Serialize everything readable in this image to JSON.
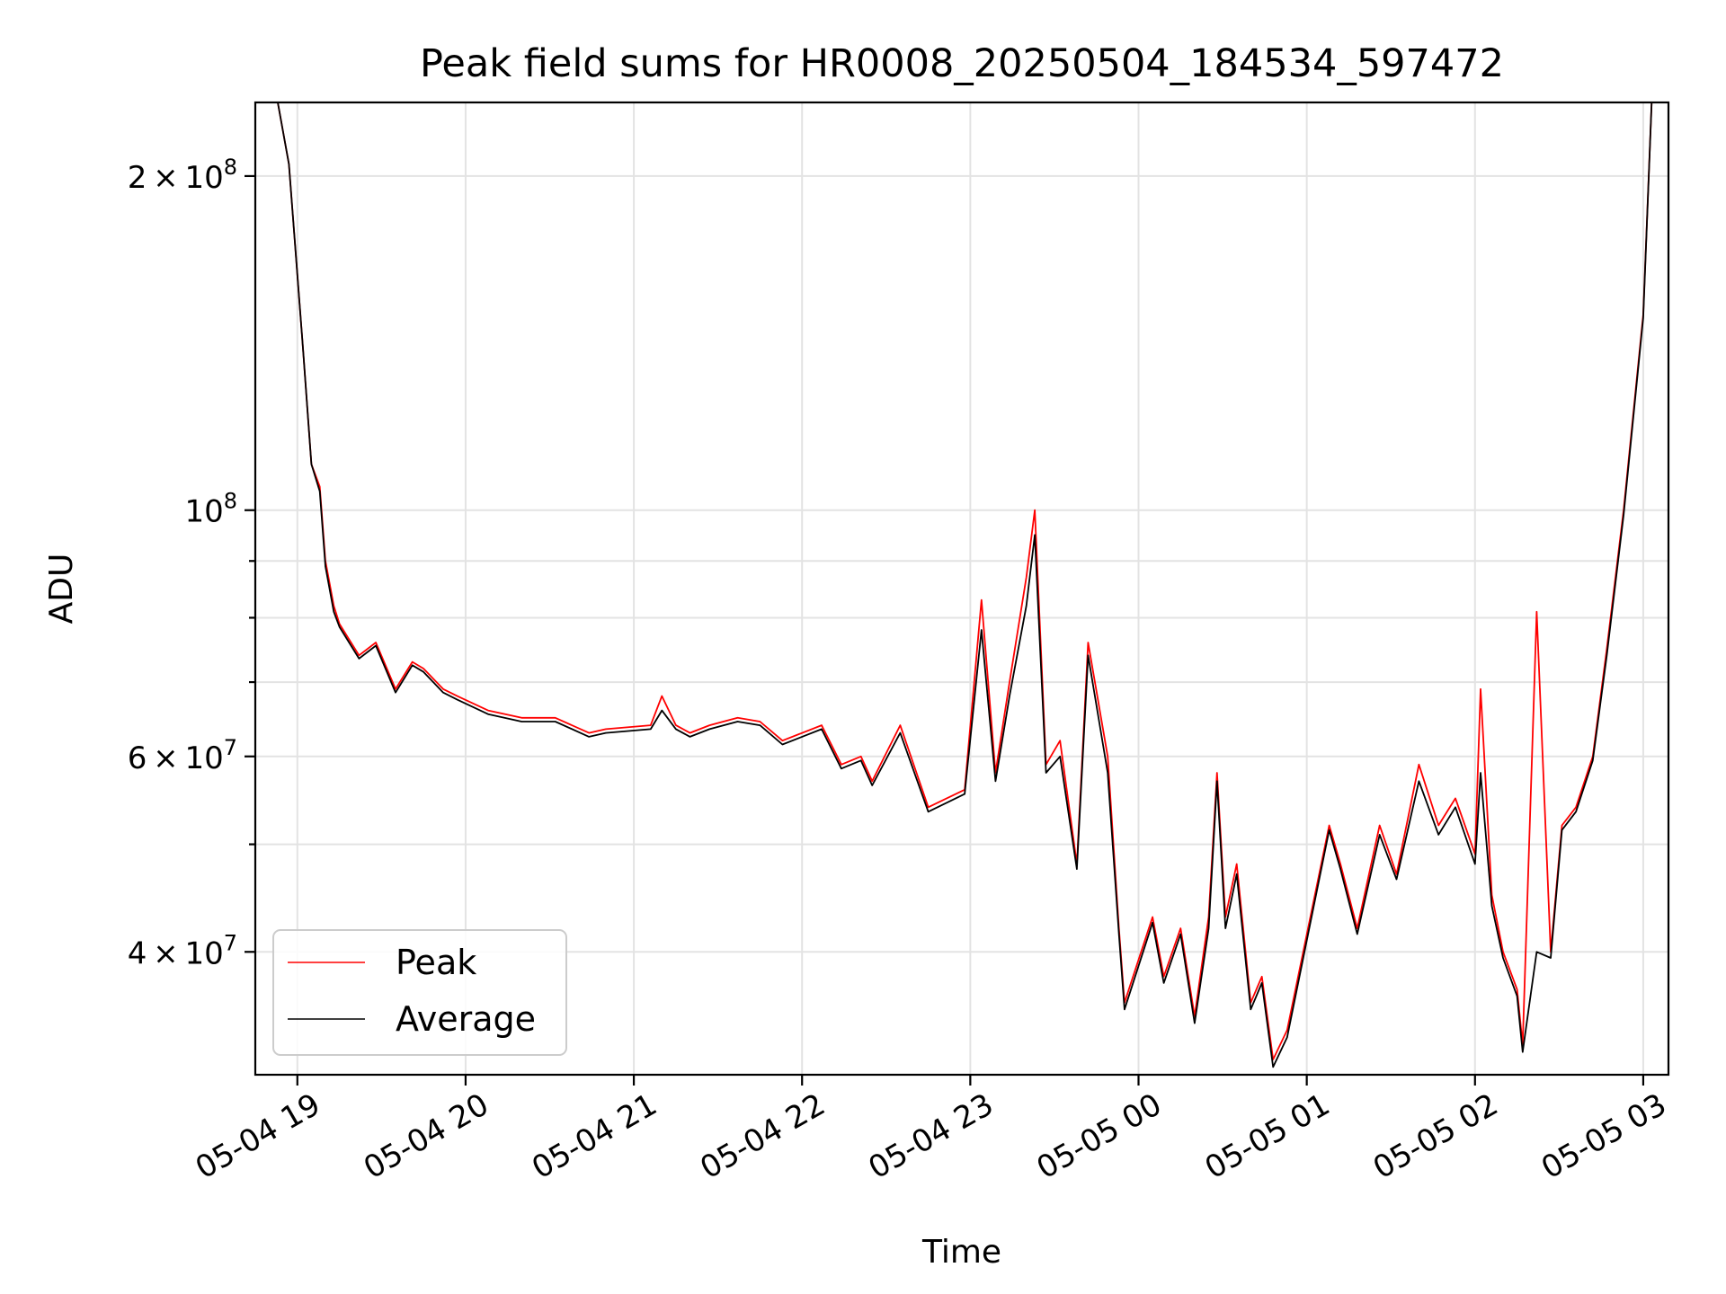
{
  "chart_data": {
    "type": "line",
    "title": "Peak field sums for HR0008_20250504_184534_597472",
    "xlabel": "Time",
    "ylabel": "ADU",
    "x_ticks": [
      "05-04 19",
      "05-04 20",
      "05-04 21",
      "05-04 22",
      "05-04 23",
      "05-05 00",
      "05-05 01",
      "05-05 02",
      "05-05 03"
    ],
    "x_tick_times": [
      "2025-05-04 19:00",
      "2025-05-04 20:00",
      "2025-05-04 21:00",
      "2025-05-04 22:00",
      "2025-05-04 23:00",
      "2025-05-05 00:00",
      "2025-05-05 01:00",
      "2025-05-05 02:00",
      "2025-05-05 03:00"
    ],
    "xlim": [
      "2025-05-04 18:45",
      "2025-05-05 03:09"
    ],
    "y_scale": "log",
    "ylim": [
      31000000,
      233000000
    ],
    "y_ticks": [
      {
        "value": 40000000,
        "mantissa": "4",
        "exponent": "7"
      },
      {
        "value": 60000000,
        "mantissa": "6",
        "exponent": "7"
      },
      {
        "value": 100000000,
        "mantissa": "",
        "exponent": "8"
      },
      {
        "value": 200000000,
        "mantissa": "2",
        "exponent": "8"
      }
    ],
    "y_minor_ticks": [
      30000000,
      50000000,
      70000000,
      80000000,
      90000000
    ],
    "grid": true,
    "legend_position": "lower-left",
    "series": [
      {
        "name": "Peak",
        "color": "#ff0000",
        "x": [
          "2025-05-04 18:45",
          "2025-05-04 18:53",
          "2025-05-04 18:57",
          "2025-05-04 19:02",
          "2025-05-04 19:05",
          "2025-05-04 19:08",
          "2025-05-04 19:10",
          "2025-05-04 19:13",
          "2025-05-04 19:15",
          "2025-05-04 19:22",
          "2025-05-04 19:28",
          "2025-05-04 19:35",
          "2025-05-04 19:41",
          "2025-05-04 19:45",
          "2025-05-04 19:52",
          "2025-05-04 19:57",
          "2025-05-04 20:08",
          "2025-05-04 20:20",
          "2025-05-04 20:32",
          "2025-05-04 20:44",
          "2025-05-04 20:50",
          "2025-05-04 21:06",
          "2025-05-04 21:10",
          "2025-05-04 21:15",
          "2025-05-04 21:20",
          "2025-05-04 21:27",
          "2025-05-04 21:37",
          "2025-05-04 21:45",
          "2025-05-04 21:53",
          "2025-05-04 22:07",
          "2025-05-04 22:14",
          "2025-05-04 22:21",
          "2025-05-04 22:25",
          "2025-05-04 22:35",
          "2025-05-04 22:45",
          "2025-05-04 22:58",
          "2025-05-04 23:04",
          "2025-05-04 23:09",
          "2025-05-04 23:14",
          "2025-05-04 23:20",
          "2025-05-04 23:23",
          "2025-05-04 23:27",
          "2025-05-04 23:32",
          "2025-05-04 23:38",
          "2025-05-04 23:42",
          "2025-05-04 23:49",
          "2025-05-04 23:53",
          "2025-05-04 23:55",
          "2025-05-05 00:05",
          "2025-05-05 00:09",
          "2025-05-05 00:15",
          "2025-05-05 00:20",
          "2025-05-05 00:25",
          "2025-05-05 00:28",
          "2025-05-05 00:31",
          "2025-05-05 00:35",
          "2025-05-05 00:40",
          "2025-05-05 00:44",
          "2025-05-05 00:48",
          "2025-05-05 00:53",
          "2025-05-05 01:08",
          "2025-05-05 01:12",
          "2025-05-05 01:18",
          "2025-05-05 01:26",
          "2025-05-05 01:32",
          "2025-05-05 01:40",
          "2025-05-05 01:47",
          "2025-05-05 01:53",
          "2025-05-05 02:00",
          "2025-05-05 02:02",
          "2025-05-05 02:06",
          "2025-05-05 02:10",
          "2025-05-05 02:15",
          "2025-05-05 02:17",
          "2025-05-05 02:22",
          "2025-05-05 02:27",
          "2025-05-05 02:31",
          "2025-05-05 02:36",
          "2025-05-05 02:42",
          "2025-05-05 02:47",
          "2025-05-05 02:53",
          "2025-05-05 03:00",
          "2025-05-05 03:03"
        ],
        "values": [
          233000000,
          233000000,
          205000000,
          140000000,
          110000000,
          105000000,
          90000000,
          82000000,
          79000000,
          74000000,
          76000000,
          69000000,
          73000000,
          72000000,
          69000000,
          68000000,
          66000000,
          65000000,
          65000000,
          63000000,
          63500000,
          64000000,
          68000000,
          64000000,
          63000000,
          64000000,
          65000000,
          64500000,
          62000000,
          64000000,
          59000000,
          60000000,
          57000000,
          64000000,
          54000000,
          56000000,
          83000000,
          58000000,
          70000000,
          87000000,
          100000000,
          59000000,
          62000000,
          48000000,
          76000000,
          60000000,
          42000000,
          36000000,
          43000000,
          38000000,
          42000000,
          35000000,
          43000000,
          58000000,
          43000000,
          48000000,
          36000000,
          38000000,
          32000000,
          34000000,
          52000000,
          48000000,
          42000000,
          52000000,
          47000000,
          59000000,
          52000000,
          55000000,
          49000000,
          69000000,
          45000000,
          40000000,
          37000000,
          33000000,
          81000000,
          40000000,
          52000000,
          54000000,
          60000000,
          75000000,
          100000000,
          150000000,
          233000000
        ]
      },
      {
        "name": "Average",
        "color": "#000000",
        "x": [
          "2025-05-04 18:45",
          "2025-05-04 18:53",
          "2025-05-04 18:57",
          "2025-05-04 19:02",
          "2025-05-04 19:05",
          "2025-05-04 19:08",
          "2025-05-04 19:10",
          "2025-05-04 19:13",
          "2025-05-04 19:15",
          "2025-05-04 19:22",
          "2025-05-04 19:28",
          "2025-05-04 19:35",
          "2025-05-04 19:41",
          "2025-05-04 19:45",
          "2025-05-04 19:52",
          "2025-05-04 19:57",
          "2025-05-04 20:08",
          "2025-05-04 20:20",
          "2025-05-04 20:32",
          "2025-05-04 20:44",
          "2025-05-04 20:50",
          "2025-05-04 21:06",
          "2025-05-04 21:10",
          "2025-05-04 21:15",
          "2025-05-04 21:20",
          "2025-05-04 21:27",
          "2025-05-04 21:37",
          "2025-05-04 21:45",
          "2025-05-04 21:53",
          "2025-05-04 22:07",
          "2025-05-04 22:14",
          "2025-05-04 22:21",
          "2025-05-04 22:25",
          "2025-05-04 22:35",
          "2025-05-04 22:45",
          "2025-05-04 22:58",
          "2025-05-04 23:04",
          "2025-05-04 23:09",
          "2025-05-04 23:14",
          "2025-05-04 23:20",
          "2025-05-04 23:23",
          "2025-05-04 23:27",
          "2025-05-04 23:32",
          "2025-05-04 23:38",
          "2025-05-04 23:42",
          "2025-05-04 23:49",
          "2025-05-04 23:53",
          "2025-05-04 23:55",
          "2025-05-05 00:05",
          "2025-05-05 00:09",
          "2025-05-05 00:15",
          "2025-05-05 00:20",
          "2025-05-05 00:25",
          "2025-05-05 00:28",
          "2025-05-05 00:31",
          "2025-05-05 00:35",
          "2025-05-05 00:40",
          "2025-05-05 00:44",
          "2025-05-05 00:48",
          "2025-05-05 00:53",
          "2025-05-05 01:08",
          "2025-05-05 01:12",
          "2025-05-05 01:18",
          "2025-05-05 01:26",
          "2025-05-05 01:32",
          "2025-05-05 01:40",
          "2025-05-05 01:47",
          "2025-05-05 01:53",
          "2025-05-05 02:00",
          "2025-05-05 02:02",
          "2025-05-05 02:06",
          "2025-05-05 02:10",
          "2025-05-05 02:15",
          "2025-05-05 02:17",
          "2025-05-05 02:22",
          "2025-05-05 02:27",
          "2025-05-05 02:31",
          "2025-05-05 02:36",
          "2025-05-05 02:42",
          "2025-05-05 02:47",
          "2025-05-05 02:53",
          "2025-05-05 03:00",
          "2025-05-05 03:03"
        ],
        "values": [
          233000000,
          233000000,
          205000000,
          140000000,
          110000000,
          104000000,
          89000000,
          81000000,
          78500000,
          73500000,
          75500000,
          68500000,
          72500000,
          71500000,
          68500000,
          67500000,
          65500000,
          64500000,
          64500000,
          62500000,
          63000000,
          63500000,
          66000000,
          63500000,
          62500000,
          63500000,
          64500000,
          64000000,
          61500000,
          63500000,
          58500000,
          59500000,
          56500000,
          63000000,
          53500000,
          55500000,
          78000000,
          57000000,
          68000000,
          82000000,
          95000000,
          58000000,
          60000000,
          47500000,
          74000000,
          58000000,
          41500000,
          35500000,
          42500000,
          37500000,
          41500000,
          34500000,
          42000000,
          57000000,
          42000000,
          47000000,
          35500000,
          37500000,
          31500000,
          33500000,
          51500000,
          47500000,
          41500000,
          51000000,
          46500000,
          57000000,
          51000000,
          54000000,
          48000000,
          58000000,
          44000000,
          39500000,
          36500000,
          32500000,
          40000000,
          39500000,
          51500000,
          53500000,
          59500000,
          74000000,
          99000000,
          149000000,
          233000000
        ]
      }
    ]
  }
}
